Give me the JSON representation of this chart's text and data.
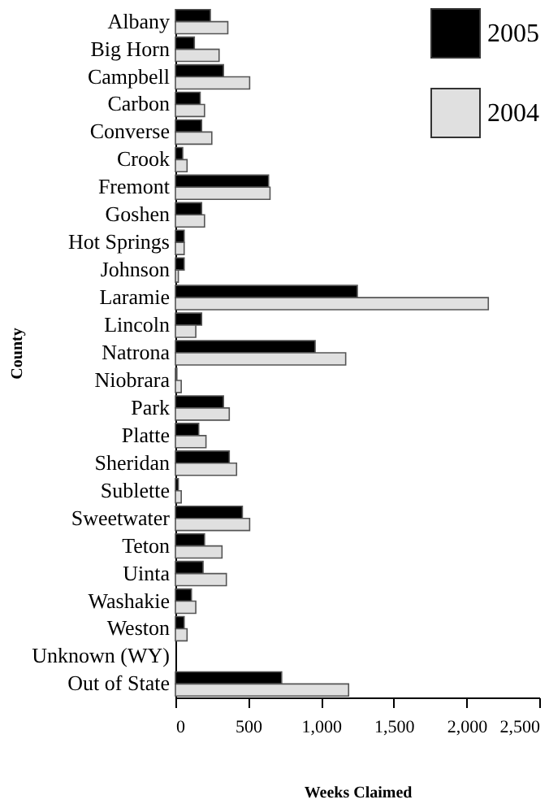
{
  "chart_data": {
    "type": "bar",
    "orientation": "horizontal",
    "xlabel": "Weeks Claimed",
    "ylabel": "County",
    "categories": [
      "Albany",
      "Big Horn",
      "Campbell",
      "Carbon",
      "Converse",
      "Crook",
      "Fremont",
      "Goshen",
      "Hot Springs",
      "Johnson",
      "Laramie",
      "Lincoln",
      "Natrona",
      "Niobrara",
      "Park",
      "Platte",
      "Sheridan",
      "Sublette",
      "Sweetwater",
      "Teton",
      "Uinta",
      "Washakie",
      "Weston",
      "Unknown (WY)",
      "Out of State"
    ],
    "series": [
      {
        "name": "2005",
        "color": "#000000",
        "values": [
          240,
          130,
          330,
          170,
          180,
          50,
          640,
          180,
          60,
          60,
          1250,
          180,
          960,
          10,
          330,
          160,
          370,
          20,
          460,
          200,
          190,
          110,
          60,
          null,
          730
        ]
      },
      {
        "name": "2004",
        "color": "#e0e0e0",
        "values": [
          360,
          300,
          510,
          200,
          250,
          80,
          650,
          200,
          60,
          20,
          2150,
          140,
          1170,
          40,
          370,
          210,
          420,
          40,
          510,
          320,
          350,
          140,
          80,
          null,
          1190
        ]
      }
    ],
    "xlim": [
      0,
      2500
    ],
    "xticks": [
      0,
      {
        "value": 500,
        "label": "500"
      },
      {
        "value": 1000,
        "label": "1,000"
      },
      {
        "value": 1500,
        "label": "1,500"
      },
      {
        "value": 2000,
        "label": "2,000"
      },
      {
        "value": 2500,
        "label": "2,500"
      }
    ],
    "grid": false,
    "legend": "top right"
  }
}
